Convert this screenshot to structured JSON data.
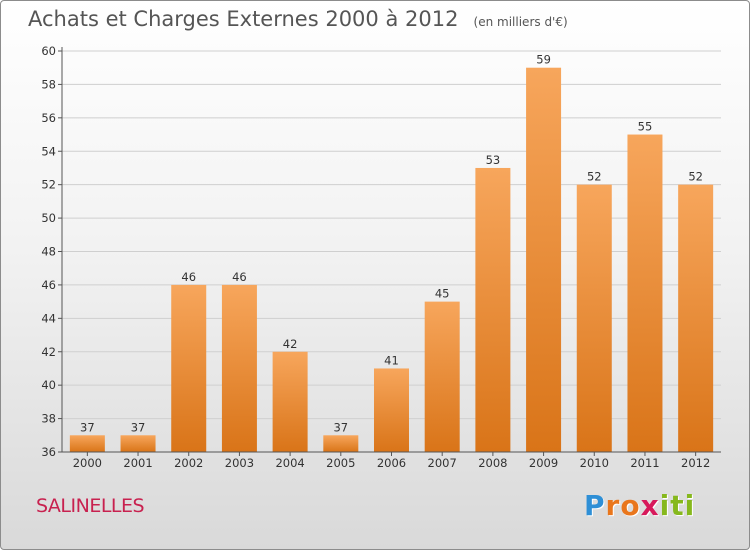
{
  "header": {
    "title": "Achats et Charges Externes 2000 à 2012",
    "unit": "(en milliers d'€)"
  },
  "footer": {
    "town": "SALINELLES",
    "brand_letters": [
      "P",
      "r",
      "o",
      "x",
      "i",
      "t",
      "i"
    ],
    "brand_colors": [
      "#2e8fd6",
      "#e9761c",
      "#e9761c",
      "#d7195b",
      "#86b81d",
      "#86b81d",
      "#86b81d"
    ]
  },
  "colors": {
    "bar_light": "#f7a65c",
    "bar_dark": "#d97418",
    "axis": "#555555",
    "grid": "#cfcfcf"
  },
  "chart_data": {
    "type": "bar",
    "title": "Achats et Charges Externes 2000 à 2012",
    "subtitle": "(en milliers d'€)",
    "xlabel": "",
    "ylabel": "",
    "categories": [
      "2000",
      "2001",
      "2002",
      "2003",
      "2004",
      "2005",
      "2006",
      "2007",
      "2008",
      "2009",
      "2010",
      "2011",
      "2012"
    ],
    "values": [
      37,
      37,
      46,
      46,
      42,
      37,
      41,
      45,
      53,
      59,
      52,
      55,
      52
    ],
    "ylim": [
      36,
      60
    ],
    "yticks": [
      36,
      38,
      40,
      42,
      44,
      46,
      48,
      50,
      52,
      54,
      56,
      58,
      60
    ],
    "grid": true,
    "legend": "none"
  }
}
